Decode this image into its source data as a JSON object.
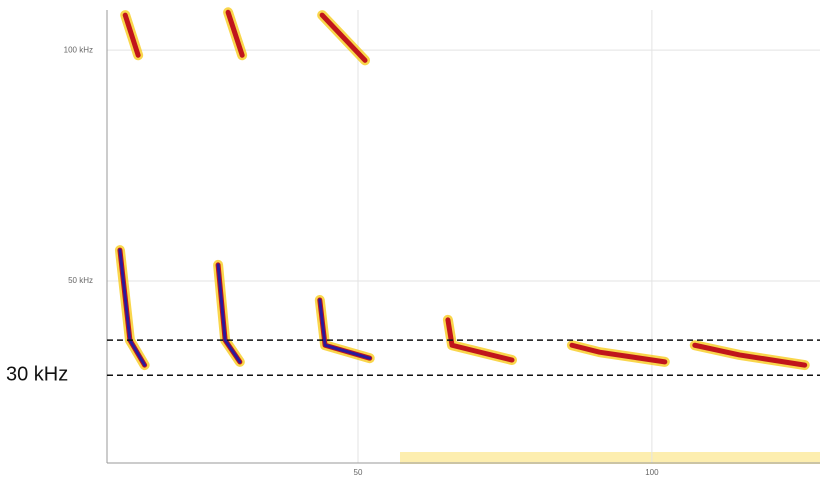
{
  "chart_data": {
    "type": "spectrogram",
    "annotation": "30 kHz",
    "xlim": [
      7.3,
      128.6
    ],
    "xticks": [
      50,
      100
    ],
    "ylim": [
      10.6,
      108.7
    ],
    "yticks": [
      {
        "value": 50,
        "label": "50 kHz"
      },
      {
        "value": 100,
        "label": "100 kHz"
      }
    ],
    "grid": true,
    "reference_lines": [
      37.2,
      29.6
    ],
    "color": "#c0151b",
    "core_color": "#2a1a9c",
    "halo_color": "#f7c400",
    "calls": [
      {
        "x": [
          9.5,
          11.2,
          13.7
        ],
        "y": [
          56.7,
          37.2,
          31.8
        ]
      },
      {
        "x": [
          26.2,
          27.4,
          29.9
        ],
        "y": [
          53.5,
          37.2,
          32.5
        ]
      },
      {
        "x": [
          43.5,
          44.4,
          52.0
        ],
        "y": [
          45.9,
          36.1,
          33.3
        ]
      },
      {
        "x": [
          65.3,
          66.0,
          76.2
        ],
        "y": [
          41.6,
          36.1,
          32.9
        ]
      },
      {
        "x": [
          86.4,
          91.1,
          102.2
        ],
        "y": [
          36.1,
          34.6,
          32.5
        ]
      },
      {
        "x": [
          107.3,
          114.9,
          126.0
        ],
        "y": [
          36.1,
          34.0,
          31.8
        ]
      },
      {
        "x": [
          10.4,
          12.6
        ],
        "y": [
          107.6,
          98.9
        ]
      },
      {
        "x": [
          27.9,
          30.3
        ],
        "y": [
          108.2,
          98.9
        ]
      },
      {
        "x": [
          43.9,
          51.2
        ],
        "y": [
          107.6,
          97.8
        ]
      }
    ]
  }
}
